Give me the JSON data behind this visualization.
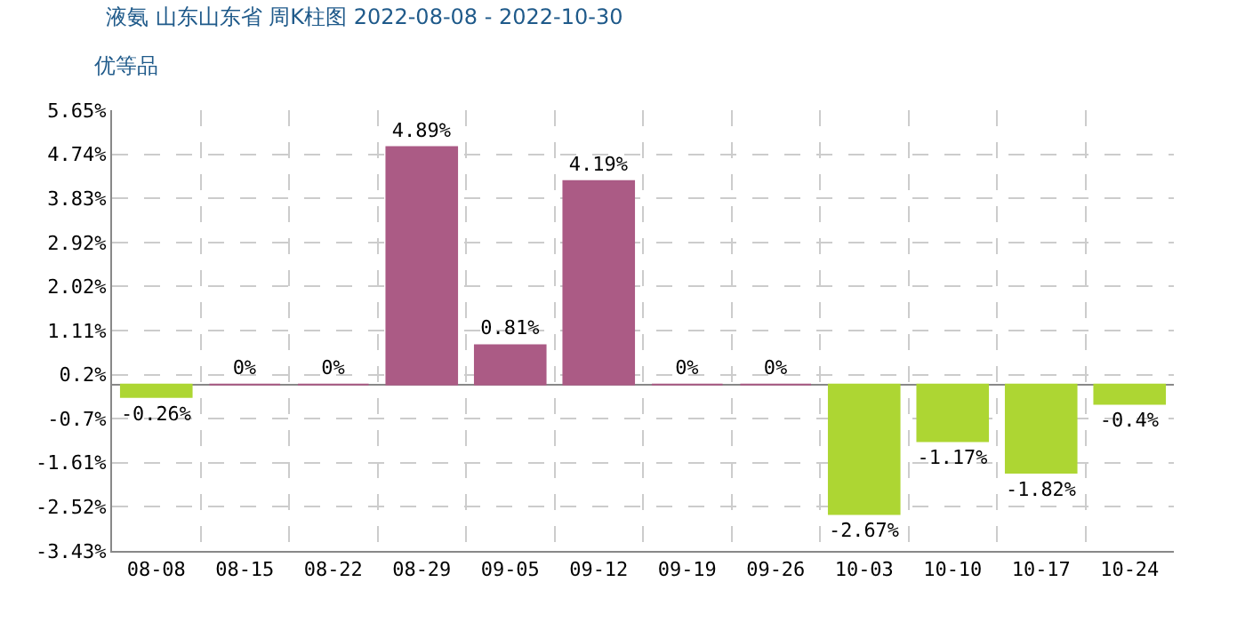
{
  "chart_data": {
    "type": "bar",
    "title": "液氨 山东山东省 周K柱图 2022-08-08 - 2022-10-30",
    "subtitle": "优等品",
    "categories": [
      "08-08",
      "08-15",
      "08-22",
      "08-29",
      "09-05",
      "09-12",
      "09-19",
      "09-26",
      "10-03",
      "10-10",
      "10-17",
      "10-24"
    ],
    "values": [
      -0.26,
      0,
      0,
      4.89,
      0.81,
      4.19,
      0,
      0,
      -2.67,
      -1.17,
      -1.82,
      -0.4
    ],
    "colors": [
      "#add633",
      "#ab5b85",
      "#ab5b85",
      "#ab5b85",
      "#ab5b85",
      "#ab5b85",
      "#ab5b85",
      "#ab5b85",
      "#add633",
      "#add633",
      "#add633",
      "#add633"
    ],
    "value_labels": [
      "-0.26%",
      "0%",
      "0%",
      "4.89%",
      "0.81%",
      "4.19%",
      "0%",
      "0%",
      "-2.67%",
      "-1.17%",
      "-1.82%",
      "-0.4%"
    ],
    "ylim": [
      -3.43,
      5.65
    ],
    "yticks": [
      {
        "value": 5.65,
        "label": "5.65%"
      },
      {
        "value": 4.74,
        "label": "4.74%"
      },
      {
        "value": 3.83,
        "label": "3.83%"
      },
      {
        "value": 2.92,
        "label": "2.92%"
      },
      {
        "value": 2.02,
        "label": "2.02%"
      },
      {
        "value": 1.11,
        "label": "1.11%"
      },
      {
        "value": 0.2,
        "label": "0.2%"
      },
      {
        "value": -0.7,
        "label": "-0.7%"
      },
      {
        "value": -1.61,
        "label": "-1.61%"
      },
      {
        "value": -2.52,
        "label": "-2.52%"
      },
      {
        "value": -3.43,
        "label": "-3.43%"
      }
    ],
    "grid": true,
    "legend": false
  }
}
